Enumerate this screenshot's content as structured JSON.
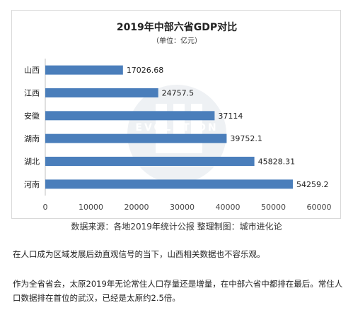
{
  "chart_data": {
    "type": "bar",
    "orientation": "horizontal",
    "title": "2019年中部六省GDP对比",
    "subtitle": "（单位：亿元）",
    "categories": [
      "山西",
      "江西",
      "安徽",
      "湖南",
      "湖北",
      "河南"
    ],
    "values": [
      17026.68,
      24757.5,
      37114,
      39752.1,
      45828.31,
      54259.2
    ],
    "data_labels": [
      "17026.68",
      "24757.5",
      "37114",
      "39752.1",
      "45828.31",
      "54259.2"
    ],
    "x_ticks": [
      "0",
      "10000",
      "20000",
      "30000",
      "40000",
      "50000",
      "60000"
    ],
    "xlim": [
      0,
      60000
    ],
    "grid": false,
    "legend": "none",
    "bar_color": "#4a7ebb",
    "watermark_text": "EVOLUTION"
  },
  "source_caption": "数据来源：各地2019年统计公报 整理制图：城市进化论",
  "paragraphs": [
    "在人口成为区域发展后劲直观信号的当下，山西相关数据也不容乐观。",
    "作为全省省会，太原2019年无论常住人口存量还是增量，在中部六省中都排在最后。常住人口数据排在首位的武汉，已经是太原约2.5倍。"
  ]
}
